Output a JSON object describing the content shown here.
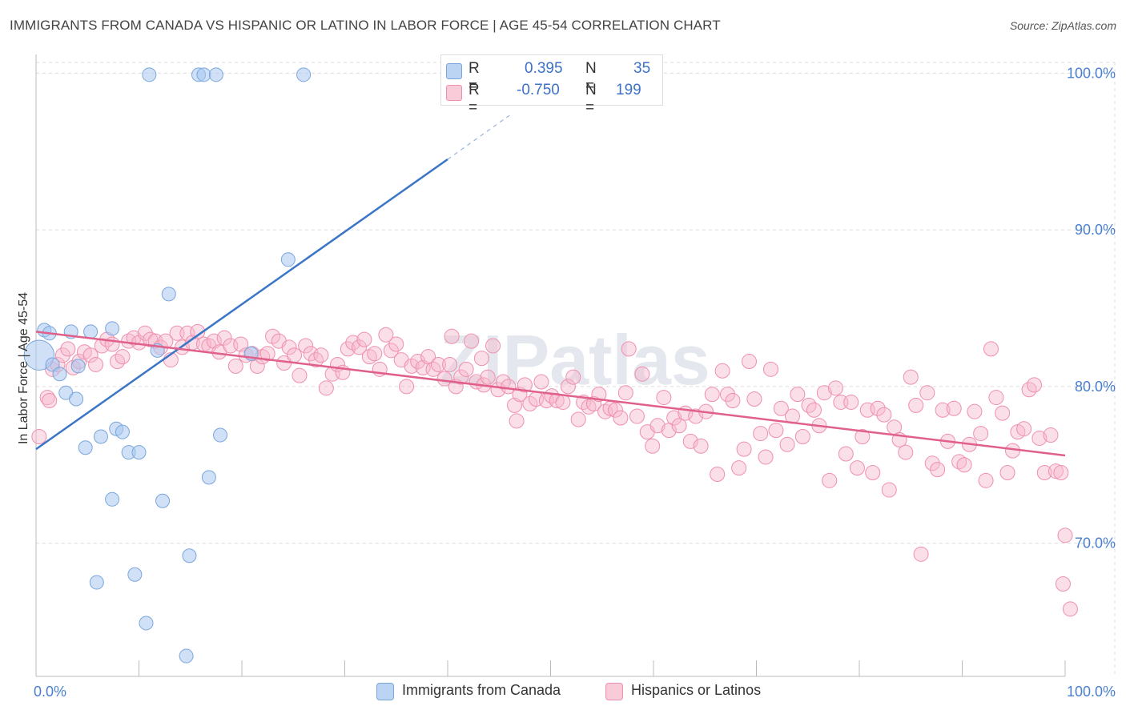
{
  "header": {
    "title": "IMMIGRANTS FROM CANADA VS HISPANIC OR LATINO IN LABOR FORCE | AGE 45-54 CORRELATION CHART",
    "source": "Source: ZipAtlas.com"
  },
  "legend": {
    "rows": [
      {
        "r_label": "R =",
        "r_value": "0.395",
        "n_label": "N =",
        "n_value": "35"
      },
      {
        "r_label": "R =",
        "r_value": "-0.750",
        "n_label": "N =",
        "n_value": "199"
      }
    ]
  },
  "bottom_legend": [
    "Immigrants from Canada",
    "Hispanics or Latinos"
  ],
  "watermark": "ZIPatlas",
  "colors": {
    "blue_fill": "#a9c8f0",
    "blue_stroke": "#7aa6dc",
    "blue_line": "#3a75c8",
    "pink_fill": "#f6b9cb",
    "pink_stroke": "#ef8fae",
    "pink_line": "#e0608a",
    "axis_text_blue": "#4a7fd0",
    "grid": "#dcdcdc"
  },
  "chart_data": {
    "type": "scatter",
    "xlabel": "",
    "ylabel": "In Labor Force | Age 45-54",
    "xlim": [
      0,
      100
    ],
    "ylim": [
      61.5,
      101.5
    ],
    "x_tick_labels": [
      {
        "value": 0,
        "label": "0.0%"
      },
      {
        "value": 100,
        "label": "100.0%"
      }
    ],
    "y_tick_labels": [
      {
        "value": 100,
        "label": "100.0%"
      },
      {
        "value": 90,
        "label": "90.0%"
      },
      {
        "value": 80,
        "label": "80.0%"
      },
      {
        "value": 70,
        "label": "70.0%"
      }
    ],
    "grid": true,
    "series": [
      {
        "name": "Immigrants from Canada",
        "trend": {
          "x0": 0,
          "y0": 76.0,
          "x1": 40,
          "y1": 94.5,
          "dashed_to_x": 46,
          "dashed_to_y": 97.3
        },
        "points": [
          [
            0.3,
            82.0,
            2.2
          ],
          [
            0.8,
            83.6,
            1
          ],
          [
            1.3,
            83.4,
            1
          ],
          [
            1.6,
            81.4,
            1
          ],
          [
            2.3,
            80.8,
            1
          ],
          [
            2.9,
            79.6,
            1
          ],
          [
            3.4,
            83.5,
            1
          ],
          [
            3.9,
            79.2,
            1
          ],
          [
            4.1,
            81.3,
            1
          ],
          [
            4.8,
            76.1,
            1
          ],
          [
            5.3,
            83.5,
            1
          ],
          [
            5.9,
            67.5,
            1
          ],
          [
            6.3,
            76.8,
            1
          ],
          [
            7.4,
            72.8,
            1
          ],
          [
            7.4,
            83.7,
            1
          ],
          [
            7.8,
            77.3,
            1
          ],
          [
            8.4,
            77.1,
            1
          ],
          [
            9.0,
            75.8,
            1
          ],
          [
            9.6,
            68.0,
            1
          ],
          [
            10.0,
            75.8,
            1
          ],
          [
            10.7,
            64.9,
            1
          ],
          [
            11.0,
            99.9,
            1
          ],
          [
            11.8,
            82.3,
            1
          ],
          [
            12.3,
            72.7,
            1
          ],
          [
            12.9,
            85.9,
            1
          ],
          [
            14.6,
            62.8,
            1
          ],
          [
            14.9,
            69.2,
            1
          ],
          [
            15.8,
            99.9,
            1
          ],
          [
            16.3,
            99.9,
            1
          ],
          [
            16.8,
            74.2,
            1
          ],
          [
            17.5,
            99.9,
            1
          ],
          [
            17.9,
            76.9,
            1
          ],
          [
            20.9,
            82.1,
            1
          ],
          [
            24.5,
            88.1,
            1
          ],
          [
            26.0,
            99.9,
            1
          ]
        ]
      },
      {
        "name": "Hispanics or Latinos",
        "trend": {
          "x0": 0,
          "y0": 83.5,
          "x1": 100,
          "y1": 75.6
        },
        "points": [
          [
            0.3,
            76.8
          ],
          [
            1.1,
            79.3
          ],
          [
            1.3,
            79.1
          ],
          [
            1.6,
            81.1
          ],
          [
            2.1,
            81.4
          ],
          [
            2.6,
            82.0
          ],
          [
            3.1,
            82.4
          ],
          [
            3.6,
            81.2
          ],
          [
            4.2,
            81.6
          ],
          [
            4.7,
            82.2
          ],
          [
            5.3,
            82.0
          ],
          [
            5.8,
            81.4
          ],
          [
            6.4,
            82.6
          ],
          [
            6.9,
            83.0
          ],
          [
            7.4,
            82.7
          ],
          [
            7.9,
            81.6
          ],
          [
            8.4,
            81.9
          ],
          [
            9.0,
            82.9
          ],
          [
            9.5,
            83.1
          ],
          [
            10.0,
            82.8
          ],
          [
            10.6,
            83.4
          ],
          [
            11.1,
            83.0
          ],
          [
            11.6,
            82.9
          ],
          [
            12.1,
            82.5
          ],
          [
            12.6,
            82.9
          ],
          [
            13.1,
            81.7
          ],
          [
            13.7,
            83.4
          ],
          [
            14.2,
            82.5
          ],
          [
            14.7,
            83.4
          ],
          [
            15.2,
            82.8
          ],
          [
            15.7,
            83.5
          ],
          [
            16.3,
            82.7
          ],
          [
            16.8,
            82.6
          ],
          [
            17.3,
            82.9
          ],
          [
            17.8,
            82.2
          ],
          [
            18.3,
            83.1
          ],
          [
            18.9,
            82.6
          ],
          [
            19.4,
            81.3
          ],
          [
            19.9,
            82.7
          ],
          [
            20.4,
            82.0
          ],
          [
            21.0,
            82.1
          ],
          [
            21.5,
            81.3
          ],
          [
            22.0,
            81.9
          ],
          [
            22.5,
            82.1
          ],
          [
            23.0,
            83.2
          ],
          [
            23.6,
            82.9
          ],
          [
            24.1,
            81.5
          ],
          [
            24.6,
            82.5
          ],
          [
            25.1,
            82.0
          ],
          [
            25.6,
            80.7
          ],
          [
            26.2,
            82.6
          ],
          [
            26.7,
            82.1
          ],
          [
            27.2,
            81.7
          ],
          [
            27.7,
            82.0
          ],
          [
            28.2,
            79.9
          ],
          [
            28.8,
            80.8
          ],
          [
            29.3,
            81.4
          ],
          [
            29.8,
            80.9
          ],
          [
            30.3,
            82.4
          ],
          [
            30.8,
            82.8
          ],
          [
            31.4,
            82.5
          ],
          [
            31.9,
            83.0
          ],
          [
            32.4,
            81.9
          ],
          [
            32.9,
            82.1
          ],
          [
            33.4,
            81.1
          ],
          [
            34.0,
            83.3
          ],
          [
            34.5,
            82.3
          ],
          [
            35.0,
            82.7
          ],
          [
            35.5,
            81.7
          ],
          [
            36.0,
            80.0
          ],
          [
            36.5,
            81.3
          ],
          [
            37.1,
            81.6
          ],
          [
            37.6,
            81.2
          ],
          [
            38.1,
            81.9
          ],
          [
            38.6,
            81.1
          ],
          [
            39.1,
            81.4
          ],
          [
            39.7,
            80.5
          ],
          [
            40.2,
            81.4
          ],
          [
            40.4,
            83.2
          ],
          [
            40.8,
            80.0
          ],
          [
            41.3,
            80.6
          ],
          [
            41.8,
            81.1
          ],
          [
            42.3,
            82.9
          ],
          [
            42.8,
            80.3
          ],
          [
            43.3,
            81.8
          ],
          [
            43.5,
            80.1
          ],
          [
            43.9,
            80.6
          ],
          [
            44.4,
            82.6
          ],
          [
            44.9,
            79.8
          ],
          [
            45.4,
            80.3
          ],
          [
            45.9,
            80.0
          ],
          [
            46.5,
            78.8
          ],
          [
            46.7,
            77.8
          ],
          [
            47.0,
            79.5
          ],
          [
            47.5,
            80.1
          ],
          [
            48.0,
            78.9
          ],
          [
            48.6,
            79.2
          ],
          [
            49.1,
            80.3
          ],
          [
            49.6,
            79.1
          ],
          [
            50.1,
            79.4
          ],
          [
            50.6,
            79.1
          ],
          [
            51.2,
            79.0
          ],
          [
            51.7,
            80.0
          ],
          [
            52.2,
            80.6
          ],
          [
            52.7,
            77.9
          ],
          [
            53.2,
            79.0
          ],
          [
            53.7,
            78.7
          ],
          [
            54.2,
            78.9
          ],
          [
            54.7,
            79.5
          ],
          [
            55.3,
            78.4
          ],
          [
            55.8,
            78.6
          ],
          [
            56.3,
            78.5
          ],
          [
            56.8,
            78.0
          ],
          [
            57.3,
            79.6
          ],
          [
            57.6,
            82.4
          ],
          [
            58.4,
            78.1
          ],
          [
            58.9,
            80.8
          ],
          [
            59.4,
            77.1
          ],
          [
            59.9,
            76.2
          ],
          [
            60.4,
            77.5
          ],
          [
            61.0,
            79.3
          ],
          [
            61.5,
            77.2
          ],
          [
            62.0,
            78.0
          ],
          [
            62.5,
            77.5
          ],
          [
            63.1,
            78.3
          ],
          [
            63.6,
            76.5
          ],
          [
            64.1,
            78.1
          ],
          [
            64.6,
            76.2
          ],
          [
            65.1,
            78.4
          ],
          [
            65.7,
            79.5
          ],
          [
            66.2,
            74.4
          ],
          [
            66.7,
            81.0
          ],
          [
            67.2,
            79.5
          ],
          [
            67.7,
            79.1
          ],
          [
            68.3,
            74.8
          ],
          [
            68.8,
            76.0
          ],
          [
            69.3,
            81.6
          ],
          [
            69.8,
            79.2
          ],
          [
            70.4,
            77.0
          ],
          [
            70.9,
            75.5
          ],
          [
            71.4,
            81.1
          ],
          [
            71.9,
            77.2
          ],
          [
            72.4,
            78.6
          ],
          [
            73.0,
            76.3
          ],
          [
            73.5,
            78.1
          ],
          [
            74.0,
            79.5
          ],
          [
            74.5,
            76.8
          ],
          [
            75.1,
            78.8
          ],
          [
            75.6,
            78.5
          ],
          [
            76.1,
            77.5
          ],
          [
            76.6,
            79.6
          ],
          [
            77.1,
            74.0
          ],
          [
            77.7,
            79.9
          ],
          [
            78.2,
            79.0
          ],
          [
            78.7,
            75.7
          ],
          [
            79.2,
            79.0
          ],
          [
            79.8,
            74.8
          ],
          [
            80.3,
            76.8
          ],
          [
            80.8,
            78.5
          ],
          [
            81.3,
            74.5
          ],
          [
            81.8,
            78.6
          ],
          [
            82.4,
            78.2
          ],
          [
            82.9,
            73.4
          ],
          [
            83.4,
            77.4
          ],
          [
            83.9,
            76.6
          ],
          [
            84.5,
            75.8
          ],
          [
            85.0,
            80.6
          ],
          [
            85.5,
            78.8
          ],
          [
            86.0,
            69.3
          ],
          [
            86.6,
            79.6
          ],
          [
            87.1,
            75.1
          ],
          [
            87.6,
            74.7
          ],
          [
            88.1,
            78.5
          ],
          [
            88.6,
            76.5
          ],
          [
            89.2,
            78.6
          ],
          [
            89.7,
            75.2
          ],
          [
            90.2,
            75.0
          ],
          [
            90.7,
            76.3
          ],
          [
            91.2,
            78.4
          ],
          [
            91.8,
            77.0
          ],
          [
            92.3,
            74.0
          ],
          [
            92.8,
            82.4
          ],
          [
            93.3,
            79.3
          ],
          [
            93.9,
            78.3
          ],
          [
            94.4,
            74.5
          ],
          [
            94.9,
            75.9
          ],
          [
            95.4,
            77.1
          ],
          [
            96.0,
            77.3
          ],
          [
            96.5,
            79.8
          ],
          [
            97.0,
            80.1
          ],
          [
            97.5,
            76.7
          ],
          [
            98.0,
            74.5
          ],
          [
            98.6,
            76.9
          ],
          [
            99.1,
            74.6
          ],
          [
            99.6,
            74.5
          ],
          [
            100.0,
            70.5
          ],
          [
            99.8,
            67.4
          ],
          [
            100.5,
            65.8
          ]
        ]
      }
    ]
  }
}
